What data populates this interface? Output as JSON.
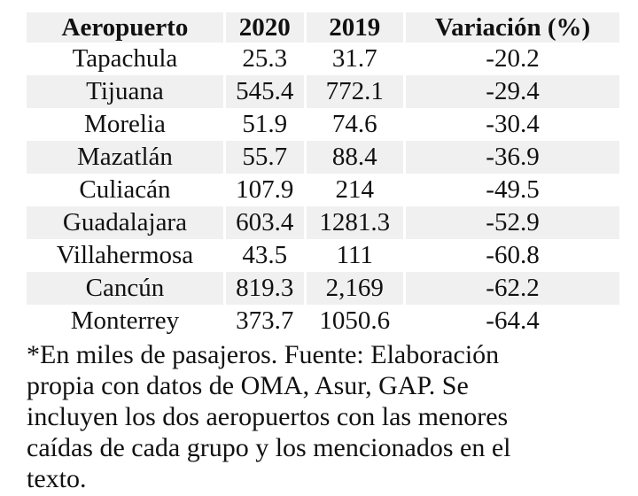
{
  "table": {
    "headers": [
      "Aeropuerto",
      "2020",
      "2019",
      "Variación (%)"
    ],
    "rows": [
      [
        "Tapachula",
        "25.3",
        "31.7",
        "-20.2"
      ],
      [
        "Tijuana",
        "545.4",
        "772.1",
        "-29.4"
      ],
      [
        "Morelia",
        "51.9",
        "74.6",
        "-30.4"
      ],
      [
        "Mazatlán",
        "55.7",
        "88.4",
        "-36.9"
      ],
      [
        "Culiacán",
        "107.9",
        "214",
        "-49.5"
      ],
      [
        "Guadalajara",
        "603.4",
        "1281.3",
        "-52.9"
      ],
      [
        "Villahermosa",
        "43.5",
        "111",
        "-60.8"
      ],
      [
        "Cancún",
        "819.3",
        "2,169",
        "-62.2"
      ],
      [
        "Monterrey",
        "373.7",
        "1050.6",
        "-64.4"
      ]
    ]
  },
  "footnote": [
    "*En miles de pasajeros. Fuente: Elaboración",
    "propia con datos de OMA, Asur, GAP. Se",
    "incluyen los dos aeropuertos con las menores",
    "caídas de cada grupo y los mencionados en el",
    "texto."
  ]
}
